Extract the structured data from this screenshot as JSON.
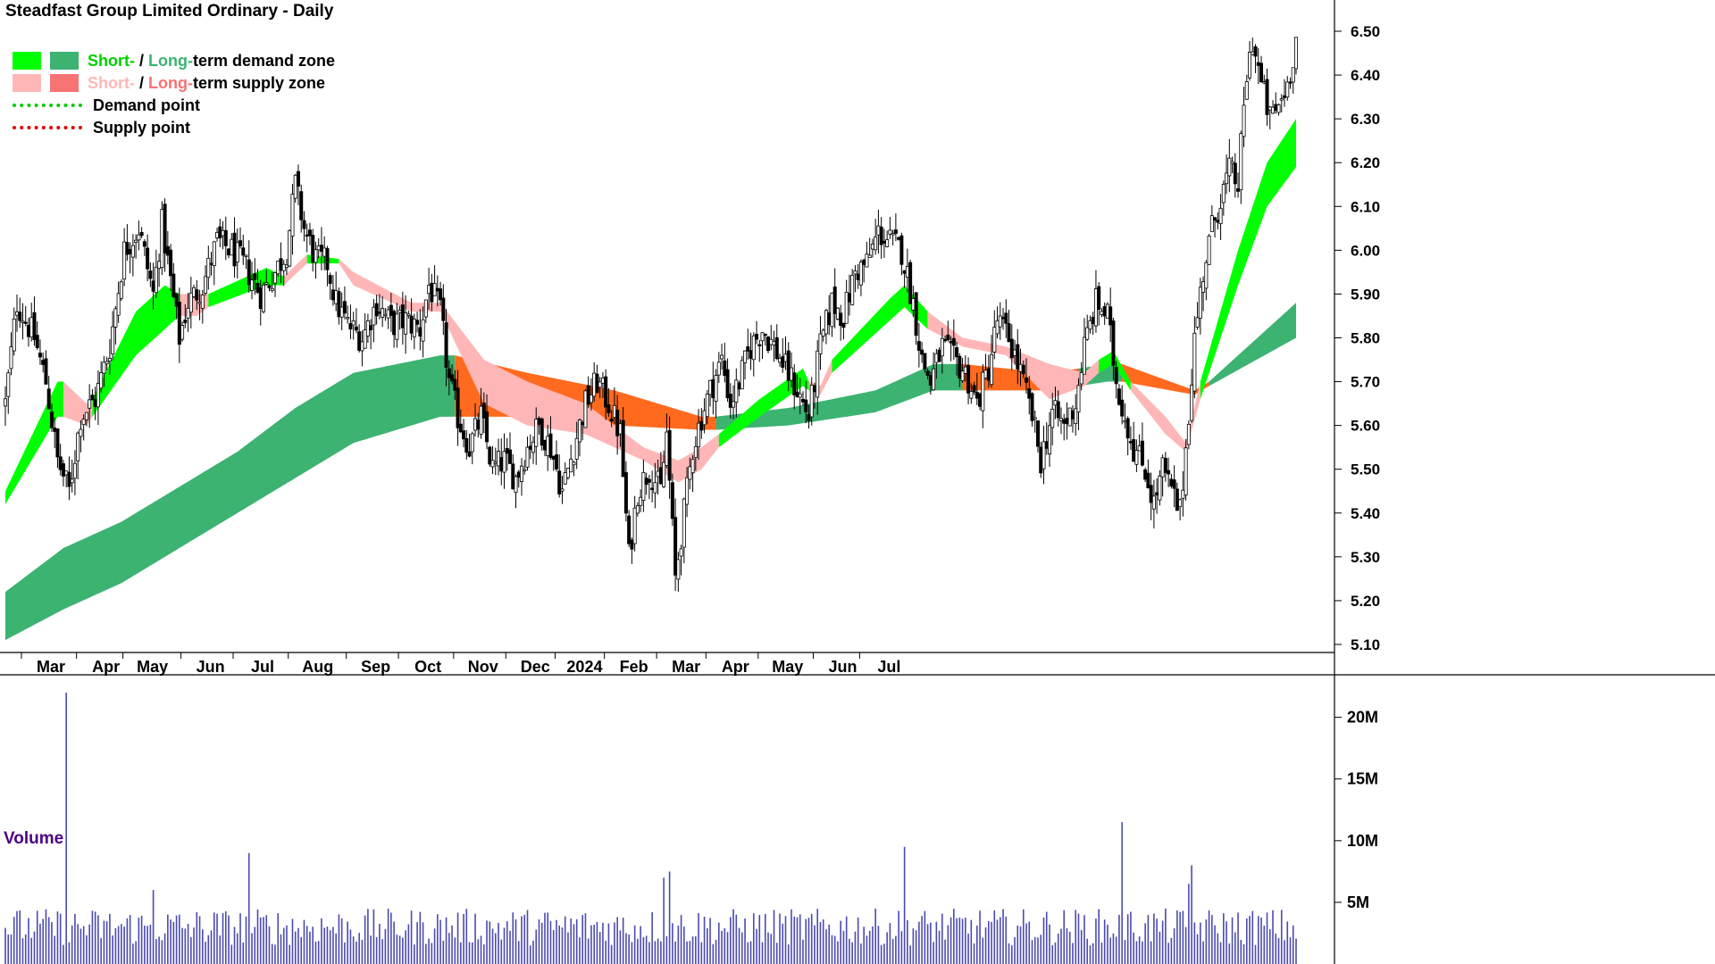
{
  "title": "Steadfast Group Limited Ordinary - Daily",
  "legend": {
    "row1": {
      "short": "Short-",
      "sep": " / ",
      "long": "Long-",
      "rest": "term demand zone"
    },
    "row2": {
      "short": "Short-",
      "sep": " / ",
      "long": "Long-",
      "rest": "term supply zone"
    },
    "row3": "Demand point",
    "row4": "Supply point"
  },
  "colors": {
    "short_demand": "#00ff00",
    "long_demand": "#3cb371",
    "short_supply": "#ffb6b6",
    "long_supply": "#ff6a1f",
    "demand_point": "#00cc00",
    "supply_point": "#e00000",
    "volume_bar": "#4b4bb0"
  },
  "volume_title": "Volume",
  "chart_data": {
    "type": "candlestick",
    "title": "Steadfast Group Limited Ordinary - Daily",
    "price_axis_ticks": [
      "6.50",
      "6.40",
      "6.30",
      "6.20",
      "6.10",
      "6.00",
      "5.90",
      "5.80",
      "5.70",
      "5.60",
      "5.50",
      "5.40",
      "5.30",
      "5.20",
      "5.10"
    ],
    "ylim": [
      5.07,
      6.57
    ],
    "month_labels": [
      "Mar",
      "Apr",
      "May",
      "Jun",
      "Jul",
      "Aug",
      "Sep",
      "Oct",
      "Nov",
      "Dec",
      "2024",
      "Feb",
      "Mar",
      "Apr",
      "May",
      "Jun",
      "Jul"
    ],
    "close_path": [
      {
        "d": 0,
        "v": 5.65
      },
      {
        "d": 4,
        "v": 5.88
      },
      {
        "d": 10,
        "v": 5.8
      },
      {
        "d": 14,
        "v": 5.7
      },
      {
        "d": 18,
        "v": 5.52
      },
      {
        "d": 22,
        "v": 5.45
      },
      {
        "d": 26,
        "v": 5.62
      },
      {
        "d": 31,
        "v": 5.66
      },
      {
        "d": 36,
        "v": 5.78
      },
      {
        "d": 41,
        "v": 6.0
      },
      {
        "d": 46,
        "v": 6.05
      },
      {
        "d": 51,
        "v": 5.9
      },
      {
        "d": 54,
        "v": 6.06
      },
      {
        "d": 57,
        "v": 5.93
      },
      {
        "d": 60,
        "v": 5.8
      },
      {
        "d": 63,
        "v": 5.88
      },
      {
        "d": 68,
        "v": 5.92
      },
      {
        "d": 73,
        "v": 6.02
      },
      {
        "d": 78,
        "v": 6.0
      },
      {
        "d": 83,
        "v": 5.96
      },
      {
        "d": 88,
        "v": 5.9
      },
      {
        "d": 93,
        "v": 5.95
      },
      {
        "d": 97,
        "v": 6.0
      },
      {
        "d": 100,
        "v": 6.15
      },
      {
        "d": 103,
        "v": 6.05
      },
      {
        "d": 107,
        "v": 5.98
      },
      {
        "d": 111,
        "v": 5.97
      },
      {
        "d": 114,
        "v": 5.88
      },
      {
        "d": 118,
        "v": 5.83
      },
      {
        "d": 123,
        "v": 5.8
      },
      {
        "d": 128,
        "v": 5.88
      },
      {
        "d": 133,
        "v": 5.83
      },
      {
        "d": 138,
        "v": 5.84
      },
      {
        "d": 143,
        "v": 5.82
      },
      {
        "d": 146,
        "v": 5.92
      },
      {
        "d": 150,
        "v": 5.86
      },
      {
        "d": 153,
        "v": 5.7
      },
      {
        "d": 156,
        "v": 5.62
      },
      {
        "d": 160,
        "v": 5.55
      },
      {
        "d": 164,
        "v": 5.62
      },
      {
        "d": 168,
        "v": 5.5
      },
      {
        "d": 172,
        "v": 5.52
      },
      {
        "d": 176,
        "v": 5.48
      },
      {
        "d": 180,
        "v": 5.55
      },
      {
        "d": 184,
        "v": 5.6
      },
      {
        "d": 188,
        "v": 5.55
      },
      {
        "d": 192,
        "v": 5.45
      },
      {
        "d": 196,
        "v": 5.55
      },
      {
        "d": 200,
        "v": 5.65
      },
      {
        "d": 204,
        "v": 5.7
      },
      {
        "d": 208,
        "v": 5.65
      },
      {
        "d": 212,
        "v": 5.58
      },
      {
        "d": 215,
        "v": 5.3
      },
      {
        "d": 218,
        "v": 5.45
      },
      {
        "d": 222,
        "v": 5.5
      },
      {
        "d": 226,
        "v": 5.45
      },
      {
        "d": 228,
        "v": 5.58
      },
      {
        "d": 231,
        "v": 5.25
      },
      {
        "d": 234,
        "v": 5.4
      },
      {
        "d": 237,
        "v": 5.55
      },
      {
        "d": 240,
        "v": 5.62
      },
      {
        "d": 243,
        "v": 5.68
      },
      {
        "d": 247,
        "v": 5.75
      },
      {
        "d": 250,
        "v": 5.65
      },
      {
        "d": 253,
        "v": 5.7
      },
      {
        "d": 257,
        "v": 5.78
      },
      {
        "d": 261,
        "v": 5.82
      },
      {
        "d": 265,
        "v": 5.78
      },
      {
        "d": 269,
        "v": 5.73
      },
      {
        "d": 273,
        "v": 5.68
      },
      {
        "d": 277,
        "v": 5.62
      },
      {
        "d": 281,
        "v": 5.78
      },
      {
        "d": 285,
        "v": 5.88
      },
      {
        "d": 289,
        "v": 5.85
      },
      {
        "d": 293,
        "v": 5.95
      },
      {
        "d": 297,
        "v": 5.97
      },
      {
        "d": 301,
        "v": 6.04
      },
      {
        "d": 305,
        "v": 6.02
      },
      {
        "d": 309,
        "v": 6.0
      },
      {
        "d": 313,
        "v": 5.88
      },
      {
        "d": 316,
        "v": 5.75
      },
      {
        "d": 319,
        "v": 5.7
      },
      {
        "d": 323,
        "v": 5.78
      },
      {
        "d": 327,
        "v": 5.75
      },
      {
        "d": 331,
        "v": 5.72
      },
      {
        "d": 335,
        "v": 5.65
      },
      {
        "d": 339,
        "v": 5.73
      },
      {
        "d": 342,
        "v": 5.84
      },
      {
        "d": 346,
        "v": 5.8
      },
      {
        "d": 350,
        "v": 5.72
      },
      {
        "d": 354,
        "v": 5.62
      },
      {
        "d": 357,
        "v": 5.52
      },
      {
        "d": 361,
        "v": 5.63
      },
      {
        "d": 365,
        "v": 5.6
      },
      {
        "d": 369,
        "v": 5.65
      },
      {
        "d": 372,
        "v": 5.78
      },
      {
        "d": 376,
        "v": 5.88
      },
      {
        "d": 380,
        "v": 5.85
      },
      {
        "d": 383,
        "v": 5.7
      },
      {
        "d": 386,
        "v": 5.62
      },
      {
        "d": 389,
        "v": 5.55
      },
      {
        "d": 393,
        "v": 5.5
      },
      {
        "d": 396,
        "v": 5.42
      },
      {
        "d": 399,
        "v": 5.5
      },
      {
        "d": 402,
        "v": 5.45
      },
      {
        "d": 405,
        "v": 5.4
      },
      {
        "d": 407,
        "v": 5.55
      },
      {
        "d": 410,
        "v": 5.8
      },
      {
        "d": 413,
        "v": 5.95
      },
      {
        "d": 416,
        "v": 6.05
      },
      {
        "d": 419,
        "v": 6.12
      },
      {
        "d": 422,
        "v": 6.18
      },
      {
        "d": 425,
        "v": 6.15
      },
      {
        "d": 428,
        "v": 6.4
      },
      {
        "d": 430,
        "v": 6.48
      },
      {
        "d": 433,
        "v": 6.38
      },
      {
        "d": 436,
        "v": 6.3
      },
      {
        "d": 439,
        "v": 6.33
      },
      {
        "d": 442,
        "v": 6.38
      },
      {
        "d": 445,
        "v": 6.48
      }
    ],
    "zones": {
      "long_term": [
        {
          "d": 0,
          "lo": 5.11,
          "hi": 5.22,
          "type": "demand"
        },
        {
          "d": 20,
          "lo": 5.18,
          "hi": 5.32,
          "type": "demand"
        },
        {
          "d": 40,
          "lo": 5.24,
          "hi": 5.38,
          "type": "demand"
        },
        {
          "d": 60,
          "lo": 5.32,
          "hi": 5.46,
          "type": "demand"
        },
        {
          "d": 80,
          "lo": 5.4,
          "hi": 5.54,
          "type": "demand"
        },
        {
          "d": 100,
          "lo": 5.48,
          "hi": 5.64,
          "type": "demand"
        },
        {
          "d": 120,
          "lo": 5.56,
          "hi": 5.72,
          "type": "demand"
        },
        {
          "d": 150,
          "lo": 5.62,
          "hi": 5.76,
          "type": "demand"
        },
        {
          "d": 155,
          "lo": 5.62,
          "hi": 5.76,
          "type": "supply"
        },
        {
          "d": 180,
          "lo": 5.62,
          "hi": 5.72,
          "type": "supply"
        },
        {
          "d": 210,
          "lo": 5.6,
          "hi": 5.68,
          "type": "supply"
        },
        {
          "d": 240,
          "lo": 5.59,
          "hi": 5.62,
          "type": "supply"
        },
        {
          "d": 245,
          "lo": 5.59,
          "hi": 5.62,
          "type": "demand"
        },
        {
          "d": 270,
          "lo": 5.6,
          "hi": 5.64,
          "type": "demand"
        },
        {
          "d": 300,
          "lo": 5.63,
          "hi": 5.68,
          "type": "demand"
        },
        {
          "d": 320,
          "lo": 5.68,
          "hi": 5.74,
          "type": "demand"
        },
        {
          "d": 330,
          "lo": 5.68,
          "hi": 5.74,
          "type": "supply"
        },
        {
          "d": 360,
          "lo": 5.68,
          "hi": 5.72,
          "type": "supply"
        },
        {
          "d": 370,
          "lo": 5.69,
          "hi": 5.73,
          "type": "demand"
        },
        {
          "d": 380,
          "lo": 5.7,
          "hi": 5.74,
          "type": "demand"
        },
        {
          "d": 385,
          "lo": 5.7,
          "hi": 5.74,
          "type": "supply"
        },
        {
          "d": 410,
          "lo": 5.67,
          "hi": 5.68,
          "type": "supply"
        },
        {
          "d": 415,
          "lo": 5.69,
          "hi": 5.7,
          "type": "demand"
        },
        {
          "d": 445,
          "lo": 5.8,
          "hi": 5.88,
          "type": "demand"
        }
      ],
      "short_term": [
        {
          "d": 0,
          "lo": 5.42,
          "hi": 5.45,
          "type": "demand"
        },
        {
          "d": 18,
          "lo": 5.62,
          "hi": 5.7,
          "type": "demand"
        },
        {
          "d": 20,
          "lo": 5.62,
          "hi": 5.7,
          "type": "supply"
        },
        {
          "d": 28,
          "lo": 5.6,
          "hi": 5.65,
          "type": "supply"
        },
        {
          "d": 30,
          "lo": 5.62,
          "hi": 5.66,
          "type": "demand"
        },
        {
          "d": 45,
          "lo": 5.76,
          "hi": 5.86,
          "type": "demand"
        },
        {
          "d": 55,
          "lo": 5.82,
          "hi": 5.92,
          "type": "demand"
        },
        {
          "d": 60,
          "lo": 5.85,
          "hi": 5.9,
          "type": "supply"
        },
        {
          "d": 66,
          "lo": 5.85,
          "hi": 5.9,
          "type": "supply"
        },
        {
          "d": 70,
          "lo": 5.87,
          "hi": 5.9,
          "type": "demand"
        },
        {
          "d": 90,
          "lo": 5.92,
          "hi": 5.96,
          "type": "demand"
        },
        {
          "d": 96,
          "lo": 5.92,
          "hi": 5.94,
          "type": "supply"
        },
        {
          "d": 104,
          "lo": 5.97,
          "hi": 5.99,
          "type": "demand"
        },
        {
          "d": 115,
          "lo": 5.97,
          "hi": 5.98,
          "type": "supply"
        },
        {
          "d": 120,
          "lo": 5.92,
          "hi": 5.95,
          "type": "supply"
        },
        {
          "d": 140,
          "lo": 5.86,
          "hi": 5.88,
          "type": "supply"
        },
        {
          "d": 150,
          "lo": 5.86,
          "hi": 5.88,
          "type": "supply"
        },
        {
          "d": 165,
          "lo": 5.65,
          "hi": 5.75,
          "type": "supply"
        },
        {
          "d": 180,
          "lo": 5.6,
          "hi": 5.7,
          "type": "supply"
        },
        {
          "d": 200,
          "lo": 5.58,
          "hi": 5.65,
          "type": "supply"
        },
        {
          "d": 220,
          "lo": 5.52,
          "hi": 5.55,
          "type": "supply"
        },
        {
          "d": 232,
          "lo": 5.47,
          "hi": 5.52,
          "type": "supply"
        },
        {
          "d": 240,
          "lo": 5.5,
          "hi": 5.55,
          "type": "supply"
        },
        {
          "d": 246,
          "lo": 5.55,
          "hi": 5.58,
          "type": "demand"
        },
        {
          "d": 260,
          "lo": 5.62,
          "hi": 5.66,
          "type": "demand"
        },
        {
          "d": 275,
          "lo": 5.69,
          "hi": 5.73,
          "type": "demand"
        },
        {
          "d": 277,
          "lo": 5.68,
          "hi": 5.7,
          "type": "supply"
        },
        {
          "d": 281,
          "lo": 5.67,
          "hi": 5.69,
          "type": "supply"
        },
        {
          "d": 285,
          "lo": 5.72,
          "hi": 5.75,
          "type": "demand"
        },
        {
          "d": 305,
          "lo": 5.84,
          "hi": 5.89,
          "type": "demand"
        },
        {
          "d": 310,
          "lo": 5.87,
          "hi": 5.92,
          "type": "demand"
        },
        {
          "d": 318,
          "lo": 5.82,
          "hi": 5.86,
          "type": "supply"
        },
        {
          "d": 330,
          "lo": 5.78,
          "hi": 5.8,
          "type": "supply"
        },
        {
          "d": 345,
          "lo": 5.76,
          "hi": 5.78,
          "type": "supply"
        },
        {
          "d": 360,
          "lo": 5.66,
          "hi": 5.74,
          "type": "supply"
        },
        {
          "d": 372,
          "lo": 5.69,
          "hi": 5.72,
          "type": "supply"
        },
        {
          "d": 377,
          "lo": 5.72,
          "hi": 5.75,
          "type": "demand"
        },
        {
          "d": 382,
          "lo": 5.74,
          "hi": 5.77,
          "type": "demand"
        },
        {
          "d": 388,
          "lo": 5.68,
          "hi": 5.7,
          "type": "supply"
        },
        {
          "d": 400,
          "lo": 5.58,
          "hi": 5.62,
          "type": "supply"
        },
        {
          "d": 407,
          "lo": 5.54,
          "hi": 5.56,
          "type": "supply"
        },
        {
          "d": 412,
          "lo": 5.66,
          "hi": 5.7,
          "type": "demand"
        },
        {
          "d": 425,
          "lo": 5.92,
          "hi": 6.0,
          "type": "demand"
        },
        {
          "d": 435,
          "lo": 6.1,
          "hi": 6.2,
          "type": "demand"
        },
        {
          "d": 445,
          "lo": 6.19,
          "hi": 6.3,
          "type": "demand"
        }
      ]
    },
    "volume": {
      "axis_ticks": [
        "20M",
        "15M",
        "10M",
        "5M"
      ],
      "max": 22,
      "spikes": [
        {
          "d": 21,
          "v": 22
        },
        {
          "d": 84,
          "v": 9
        },
        {
          "d": 51,
          "v": 6
        },
        {
          "d": 227,
          "v": 7
        },
        {
          "d": 229,
          "v": 7.5
        },
        {
          "d": 310,
          "v": 9.5
        },
        {
          "d": 385,
          "v": 11.5
        },
        {
          "d": 409,
          "v": 8
        },
        {
          "d": 408,
          "v": 6.5
        }
      ],
      "typical_range": [
        1.5,
        4.5
      ]
    }
  }
}
